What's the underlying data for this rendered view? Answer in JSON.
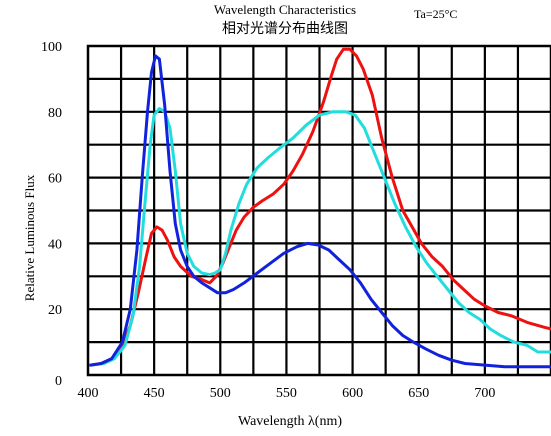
{
  "chart_data": {
    "type": "line",
    "title": "Wavelength Characteristics",
    "subtitle": "相对光谱分布曲线图",
    "condition": "Ta=25°C",
    "xlabel": "Wavelength λ(nm)",
    "ylabel": "Relative Luminous Flux",
    "xlim": [
      400,
      750
    ],
    "ylim": [
      0,
      100
    ],
    "x_ticks": [
      400,
      450,
      500,
      550,
      600,
      650,
      700
    ],
    "y_ticks": [
      0,
      20,
      40,
      60,
      80,
      100
    ],
    "grid": true,
    "series": [
      {
        "color": "#ee1111",
        "points": [
          [
            402,
            3
          ],
          [
            410,
            3.5
          ],
          [
            418,
            5
          ],
          [
            425,
            8
          ],
          [
            432,
            15
          ],
          [
            438,
            25
          ],
          [
            444,
            36
          ],
          [
            448,
            43
          ],
          [
            452,
            45
          ],
          [
            456,
            44
          ],
          [
            460,
            41
          ],
          [
            465,
            36
          ],
          [
            470,
            33
          ],
          [
            478,
            30
          ],
          [
            486,
            29
          ],
          [
            492,
            28
          ],
          [
            497,
            30
          ],
          [
            502,
            34
          ],
          [
            507,
            39
          ],
          [
            512,
            44
          ],
          [
            518,
            48
          ],
          [
            525,
            51
          ],
          [
            532,
            53
          ],
          [
            540,
            55
          ],
          [
            548,
            58
          ],
          [
            555,
            62
          ],
          [
            562,
            67
          ],
          [
            570,
            74
          ],
          [
            578,
            83
          ],
          [
            584,
            91
          ],
          [
            588,
            96
          ],
          [
            593,
            99
          ],
          [
            598,
            99
          ],
          [
            603,
            97
          ],
          [
            608,
            93
          ],
          [
            615,
            85
          ],
          [
            622,
            72
          ],
          [
            630,
            60
          ],
          [
            638,
            50
          ],
          [
            645,
            45
          ],
          [
            652,
            40
          ],
          [
            660,
            36
          ],
          [
            668,
            33
          ],
          [
            676,
            29
          ],
          [
            684,
            26
          ],
          [
            692,
            23
          ],
          [
            700,
            21
          ],
          [
            710,
            19
          ],
          [
            720,
            18
          ],
          [
            732,
            16
          ],
          [
            745,
            14.5
          ],
          [
            750,
            14
          ]
        ]
      },
      {
        "color": "#22dddd",
        "points": [
          [
            402,
            3
          ],
          [
            412,
            3.5
          ],
          [
            420,
            5
          ],
          [
            428,
            9
          ],
          [
            434,
            18
          ],
          [
            439,
            33
          ],
          [
            443,
            52
          ],
          [
            447,
            70
          ],
          [
            450,
            79
          ],
          [
            454,
            81
          ],
          [
            458,
            80
          ],
          [
            462,
            75
          ],
          [
            466,
            62
          ],
          [
            470,
            46
          ],
          [
            475,
            37
          ],
          [
            480,
            33
          ],
          [
            486,
            31
          ],
          [
            492,
            30.5
          ],
          [
            496,
            31
          ],
          [
            500,
            32
          ],
          [
            504,
            37
          ],
          [
            508,
            44
          ],
          [
            514,
            52
          ],
          [
            520,
            58
          ],
          [
            528,
            63
          ],
          [
            536,
            66
          ],
          [
            545,
            69
          ],
          [
            555,
            72
          ],
          [
            565,
            76
          ],
          [
            575,
            79
          ],
          [
            585,
            80
          ],
          [
            595,
            80
          ],
          [
            602,
            79
          ],
          [
            609,
            75
          ],
          [
            616,
            68
          ],
          [
            624,
            60
          ],
          [
            632,
            52
          ],
          [
            640,
            45
          ],
          [
            648,
            39
          ],
          [
            656,
            34
          ],
          [
            664,
            30
          ],
          [
            672,
            26
          ],
          [
            680,
            22
          ],
          [
            688,
            19
          ],
          [
            696,
            17
          ],
          [
            704,
            14
          ],
          [
            712,
            12
          ],
          [
            722,
            10
          ],
          [
            732,
            9
          ],
          [
            740,
            7
          ],
          [
            750,
            7
          ]
        ]
      },
      {
        "color": "#1122dd",
        "points": [
          [
            402,
            3
          ],
          [
            410,
            3.5
          ],
          [
            418,
            5
          ],
          [
            426,
            10
          ],
          [
            432,
            20
          ],
          [
            437,
            38
          ],
          [
            441,
            60
          ],
          [
            445,
            80
          ],
          [
            448,
            92
          ],
          [
            451,
            97
          ],
          [
            454,
            96
          ],
          [
            458,
            82
          ],
          [
            462,
            62
          ],
          [
            466,
            46
          ],
          [
            470,
            38
          ],
          [
            475,
            33
          ],
          [
            480,
            30
          ],
          [
            486,
            28
          ],
          [
            492,
            26.5
          ],
          [
            498,
            25
          ],
          [
            504,
            25
          ],
          [
            510,
            26
          ],
          [
            518,
            28
          ],
          [
            528,
            31
          ],
          [
            538,
            34
          ],
          [
            548,
            37
          ],
          [
            558,
            39
          ],
          [
            566,
            40
          ],
          [
            574,
            39.5
          ],
          [
            582,
            38
          ],
          [
            590,
            35
          ],
          [
            598,
            32
          ],
          [
            606,
            28
          ],
          [
            614,
            23
          ],
          [
            622,
            19
          ],
          [
            630,
            15
          ],
          [
            638,
            12
          ],
          [
            646,
            10
          ],
          [
            655,
            8
          ],
          [
            665,
            6
          ],
          [
            675,
            4.5
          ],
          [
            685,
            3.5
          ],
          [
            700,
            3
          ],
          [
            715,
            2.5
          ],
          [
            730,
            2.5
          ],
          [
            750,
            2.5
          ]
        ]
      }
    ]
  }
}
